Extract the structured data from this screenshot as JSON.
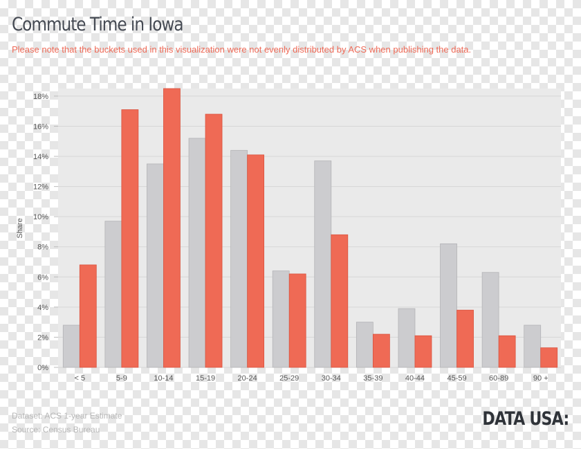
{
  "header": {
    "title": "Commute Time in Iowa",
    "note": "Please note that the buckets used in this visualization were not evenly distributed by ACS when publishing the data."
  },
  "footer": {
    "dataset": "Dataset: ACS 1-year Estimate",
    "source": "Source: Census Bureau",
    "brand": "DATA USA:"
  },
  "colors": {
    "series_gray": "#cccccf",
    "series_red": "#ef6a55",
    "plot_background": "#eaeaea",
    "note_text": "#ee6a57"
  },
  "chart_data": {
    "type": "bar",
    "ylabel": "Share",
    "xlabel": "",
    "ylim": [
      0,
      18.5
    ],
    "yticks": [
      0,
      2,
      4,
      6,
      8,
      10,
      12,
      14,
      16,
      18
    ],
    "ytick_labels": [
      "0%",
      "2%",
      "4%",
      "6%",
      "8%",
      "10%",
      "12%",
      "14%",
      "16%",
      "18%"
    ],
    "grid": true,
    "categories": [
      "< 5",
      "5-9",
      "10-14",
      "15-19",
      "20-24",
      "25-29",
      "30-34",
      "35-39",
      "40-44",
      "45-59",
      "60-89",
      "90 +"
    ],
    "series": [
      {
        "color": "#cccccf",
        "values": [
          2.8,
          9.7,
          13.5,
          15.2,
          14.4,
          6.4,
          13.7,
          3.0,
          3.9,
          8.2,
          6.3,
          2.8
        ]
      },
      {
        "color": "#ef6a55",
        "values": [
          6.8,
          17.1,
          18.5,
          16.8,
          14.1,
          6.2,
          8.8,
          2.2,
          2.1,
          3.8,
          2.1,
          1.3
        ]
      }
    ]
  }
}
